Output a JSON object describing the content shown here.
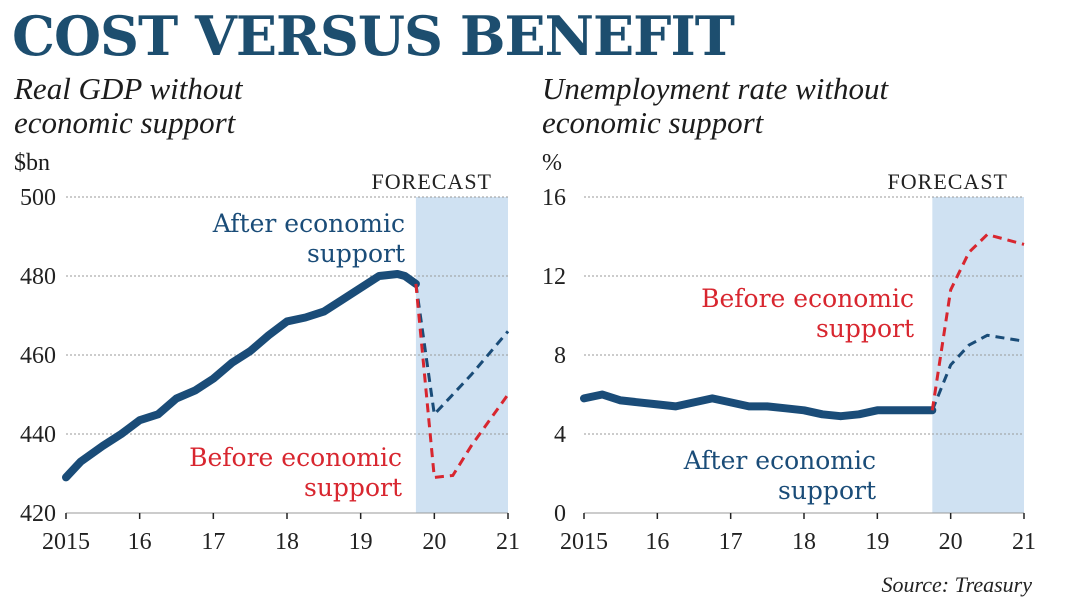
{
  "headline": "COST VERSUS BENEFIT",
  "source": "Source: Treasury",
  "forecast_label": "FORECAST",
  "colors": {
    "after": "#1a4c78",
    "before": "#d8262f",
    "forecast_band": "#cfe1f2",
    "title": "#1d4e6f"
  },
  "chart_data": [
    {
      "type": "line",
      "title": "Real GDP without economic support",
      "title_lines": [
        "Real GDP without",
        "economic support"
      ],
      "ylabel": "$bn",
      "ylim": [
        420,
        500
      ],
      "yticks": [
        "420",
        "440",
        "460",
        "480",
        "500"
      ],
      "xlim": [
        2015,
        2021
      ],
      "xticks": [
        "2015",
        "16",
        "17",
        "18",
        "19",
        "20",
        "21"
      ],
      "forecast_start": 2019.75,
      "series": [
        {
          "name": "After economic support",
          "label_lines": [
            "After economic",
            "support"
          ],
          "segments": {
            "actual": {
              "x": [
                2015.0,
                2015.2,
                2015.5,
                2015.75,
                2016.0,
                2016.25,
                2016.5,
                2016.75,
                2017.0,
                2017.25,
                2017.5,
                2017.75,
                2018.0,
                2018.25,
                2018.5,
                2018.75,
                2019.0,
                2019.25,
                2019.5,
                2019.6,
                2019.75
              ],
              "y": [
                429,
                433,
                437,
                440,
                443.5,
                445,
                449,
                451,
                454,
                458,
                461,
                465,
                468.5,
                469.5,
                471,
                474,
                477,
                480,
                480.5,
                480,
                478
              ]
            },
            "forecast": {
              "x": [
                2019.75,
                2020.0,
                2020.5,
                2021.0
              ],
              "y": [
                478,
                445,
                455,
                466
              ]
            }
          }
        },
        {
          "name": "Before economic support",
          "label_lines": [
            "Before economic",
            "support"
          ],
          "segments": {
            "forecast": {
              "x": [
                2019.75,
                2020.0,
                2020.25,
                2020.5,
                2021.0
              ],
              "y": [
                478,
                429,
                429.5,
                437,
                450
              ]
            }
          }
        }
      ]
    },
    {
      "type": "line",
      "title": "Unemployment rate without economic support",
      "title_lines": [
        "Unemployment rate without",
        "economic support"
      ],
      "ylabel": "%",
      "ylim": [
        0,
        16
      ],
      "yticks": [
        "0",
        "4",
        "8",
        "12",
        "16"
      ],
      "xlim": [
        2015,
        2021
      ],
      "xticks": [
        "2015",
        "16",
        "17",
        "18",
        "19",
        "20",
        "21"
      ],
      "forecast_start": 2019.75,
      "series": [
        {
          "name": "After economic support",
          "label_lines": [
            "After economic",
            "support"
          ],
          "segments": {
            "actual": {
              "x": [
                2015.0,
                2015.25,
                2015.5,
                2016.0,
                2016.25,
                2016.75,
                2017.0,
                2017.25,
                2017.5,
                2017.75,
                2018.0,
                2018.25,
                2018.5,
                2018.75,
                2019.0,
                2019.25,
                2019.5,
                2019.75
              ],
              "y": [
                5.8,
                6.0,
                5.7,
                5.5,
                5.4,
                5.8,
                5.6,
                5.4,
                5.4,
                5.3,
                5.2,
                5.0,
                4.9,
                5.0,
                5.2,
                5.2,
                5.2,
                5.2
              ]
            },
            "forecast": {
              "x": [
                2019.75,
                2020.0,
                2020.25,
                2020.5,
                2021.0
              ],
              "y": [
                5.2,
                7.5,
                8.5,
                9.0,
                8.7
              ]
            }
          }
        },
        {
          "name": "Before economic support",
          "label_lines": [
            "Before economic",
            "support"
          ],
          "segments": {
            "forecast": {
              "x": [
                2019.75,
                2020.0,
                2020.25,
                2020.5,
                2021.0
              ],
              "y": [
                5.2,
                11.3,
                13.2,
                14.1,
                13.6
              ]
            }
          }
        }
      ]
    }
  ]
}
